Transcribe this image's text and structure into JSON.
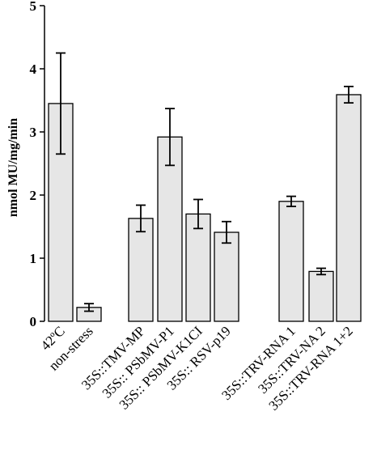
{
  "chart_data": {
    "type": "bar",
    "ylabel": "nmol MU/mg/min",
    "ylim": [
      0,
      5
    ],
    "yticks": [
      0,
      1,
      2,
      3,
      4,
      5
    ],
    "grid": false,
    "bar_color": "#e6e6e6",
    "edge_color": "#000000",
    "categories": [
      "42ºC",
      "non-stress",
      "35S::TMV-MP",
      "35S:: PSbMV-P1",
      "35S:: PSbMV-K1CI",
      "35S:: RSV-p19",
      "35S::TRV-RNA 1",
      "35S::TRV-NA 2",
      "35S::TRV-RNA 1+2"
    ],
    "values": [
      3.45,
      0.22,
      1.63,
      2.92,
      1.7,
      1.41,
      1.9,
      0.79,
      3.59
    ],
    "errors": [
      0.8,
      0.06,
      0.21,
      0.45,
      0.23,
      0.17,
      0.08,
      0.05,
      0.13
    ]
  }
}
